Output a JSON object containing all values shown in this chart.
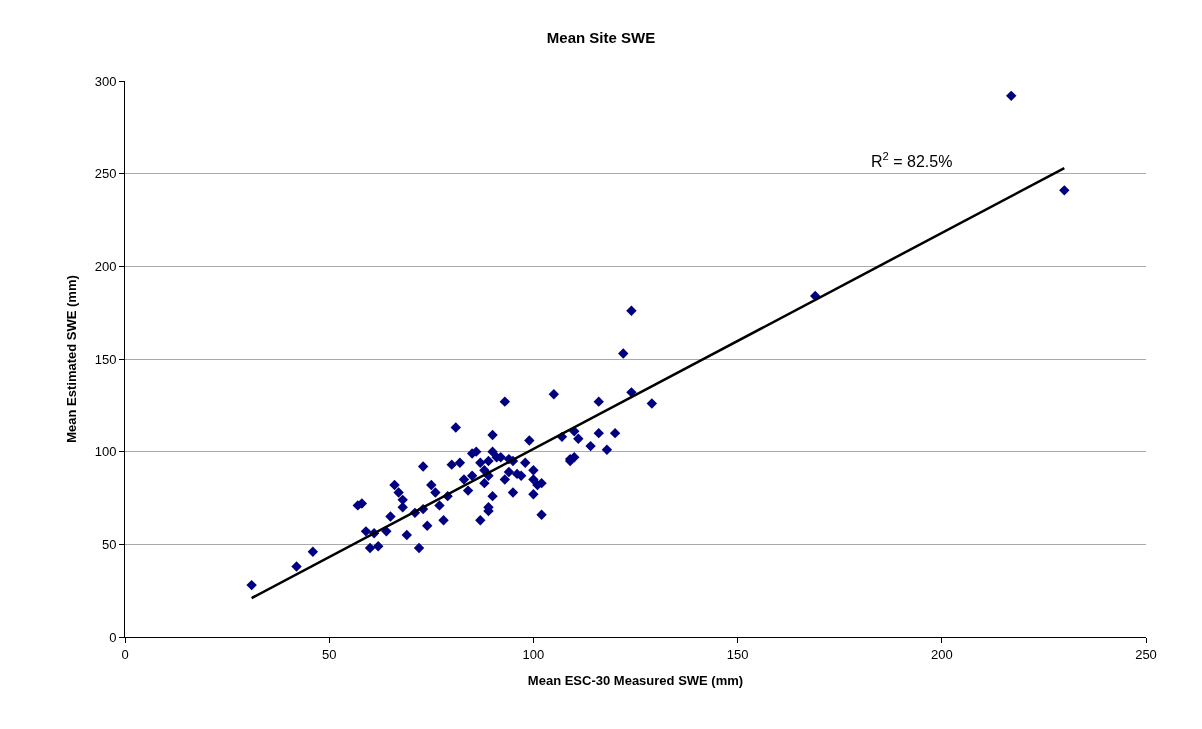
{
  "chart_data": {
    "type": "scatter",
    "title": "Mean Site SWE",
    "xlabel": "Mean ESC-30 Measured SWE (mm)",
    "ylabel": "Mean Estimated SWE (mm)",
    "xlim": [
      0,
      250
    ],
    "xticks": [
      0,
      50,
      100,
      150,
      200,
      250
    ],
    "ylim": [
      0,
      300
    ],
    "yticks": [
      0,
      50,
      100,
      150,
      200,
      250,
      300
    ],
    "grid": "y",
    "annotations": [
      "R$^{2}$ = 82.5%"
    ],
    "series": [
      {
        "color": "#000080",
        "marker": "diamond",
        "x": [
          31,
          42,
          46,
          57,
          58,
          59,
          60,
          61,
          62,
          64,
          65,
          66,
          67,
          68,
          68,
          69,
          71,
          72,
          73,
          73,
          74,
          75,
          76,
          77,
          78,
          79,
          80,
          81,
          82,
          83,
          84,
          85,
          85,
          86,
          87,
          87,
          88,
          88,
          89,
          89,
          89,
          89,
          90,
          90,
          90,
          91,
          92,
          93,
          93,
          94,
          94,
          95,
          95,
          96,
          97,
          98,
          99,
          100,
          100,
          100,
          101,
          102,
          102,
          105,
          107,
          109,
          109,
          110,
          110,
          111,
          114,
          116,
          116,
          118,
          120,
          122,
          124,
          124,
          129,
          169,
          217,
          230
        ],
        "values": [
          28,
          38,
          46,
          71,
          72,
          57,
          48,
          56,
          49,
          57,
          65,
          82,
          78,
          74,
          70,
          55,
          67,
          48,
          92,
          69,
          60,
          82,
          78,
          71,
          63,
          76,
          93,
          113,
          94,
          85,
          79,
          99,
          87,
          100,
          94,
          63,
          83,
          90,
          68,
          87,
          95,
          70,
          109,
          100,
          76,
          97,
          97,
          85,
          127,
          96,
          89,
          78,
          95,
          88,
          87,
          94,
          106,
          77,
          90,
          85,
          82,
          66,
          83,
          131,
          108,
          96,
          95,
          111,
          97,
          107,
          103,
          127,
          110,
          101,
          110,
          153,
          176,
          132,
          126,
          184,
          292,
          241
        ]
      },
      {
        "type": "line",
        "color": "#000000",
        "line_style": "solid",
        "marker": "none",
        "x": [
          31,
          230
        ],
        "values": [
          21,
          253
        ]
      }
    ]
  }
}
